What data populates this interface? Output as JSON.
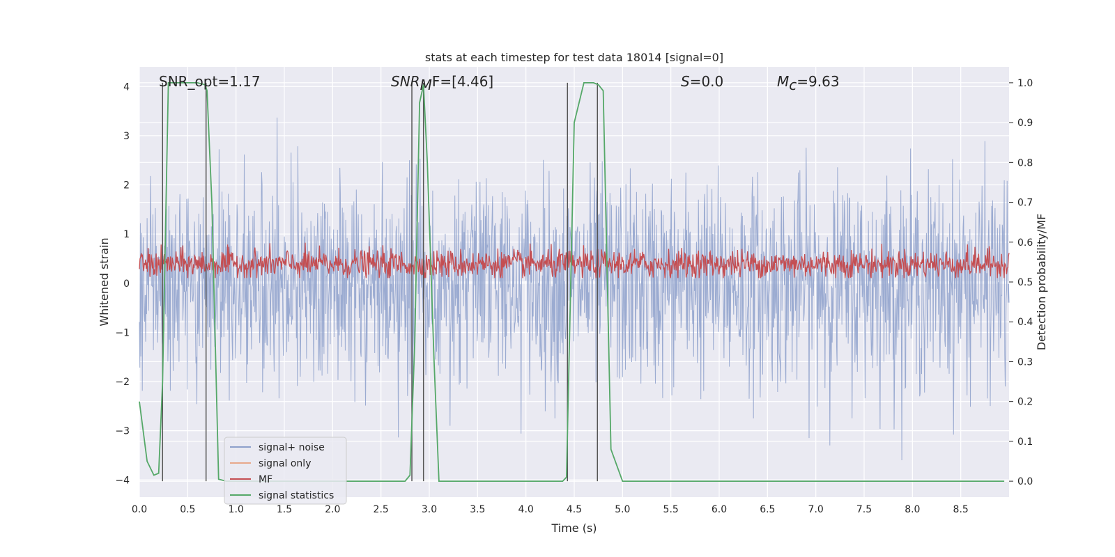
{
  "chart_data": {
    "type": "line",
    "title": "stats at each timestep for test data 18014 [signal=0]",
    "xlabel": "Time (s)",
    "ylabel_left": "Whitened strain",
    "ylabel_right": "Detection probability/MF",
    "xlim": [
      0,
      9.0
    ],
    "ylim_left": [
      -4.35,
      4.4
    ],
    "ylim_right": [
      -0.04,
      1.04
    ],
    "x_ticks": [
      "0.0",
      "0.5",
      "1.0",
      "1.5",
      "2.0",
      "2.5",
      "3.0",
      "3.5",
      "4.0",
      "4.5",
      "5.0",
      "5.5",
      "6.0",
      "6.5",
      "7.0",
      "7.5",
      "8.0",
      "8.5"
    ],
    "x_tick_values": [
      0,
      0.5,
      1,
      1.5,
      2,
      2.5,
      3,
      3.5,
      4,
      4.5,
      5,
      5.5,
      6,
      6.5,
      7,
      7.5,
      8,
      8.5
    ],
    "y_ticks_left": [
      "−4",
      "−3",
      "−2",
      "−1",
      "0",
      "1",
      "2",
      "3",
      "4"
    ],
    "y_tick_values_left": [
      -4,
      -3,
      -2,
      -1,
      0,
      1,
      2,
      3,
      4
    ],
    "y_ticks_right": [
      "0.0",
      "0.1",
      "0.2",
      "0.3",
      "0.4",
      "0.5",
      "0.6",
      "0.7",
      "0.8",
      "0.9",
      "1.0"
    ],
    "y_tick_values_right": [
      0,
      0.1,
      0.2,
      0.3,
      0.4,
      0.5,
      0.6,
      0.7,
      0.8,
      0.9,
      1.0
    ],
    "annotations": {
      "snr_opt": "SNR_opt=1.17",
      "snr_mf_base": "SNR",
      "snr_mf_sub": "M",
      "snr_mf_rest": "F=[4.46]",
      "s_var": "S",
      "s_rest": "=0.0",
      "mc_base": "M",
      "mc_sub": "c",
      "mc_rest": "=9.63"
    },
    "series": [
      {
        "name": "signal+ noise",
        "color": "#8da0cb",
        "description": "dense whitened strain noise, amplitude envelope approx ±2 with spikes to ±3.6",
        "envelope_upper": 2.0,
        "envelope_lower": -2.0,
        "spike_max": 3.6,
        "spike_min": -3.6
      },
      {
        "name": "signal only",
        "color": "#e8a88a",
        "values": []
      },
      {
        "name": "MF",
        "color": "#c44e52",
        "description": "matched filter output on right axis, around 0.55 with range 0.51–0.61"
      },
      {
        "name": "signal statistics",
        "color": "#55a868",
        "x": [
          0.0,
          0.08,
          0.15,
          0.2,
          0.24,
          0.3,
          0.35,
          0.5,
          0.6,
          0.68,
          0.7,
          0.75,
          0.82,
          0.9,
          1.5,
          2.0,
          2.5,
          2.75,
          2.8,
          2.85,
          2.9,
          2.94,
          2.98,
          3.05,
          3.1,
          3.5,
          4.0,
          4.38,
          4.42,
          4.5,
          4.6,
          4.7,
          4.75,
          4.8,
          4.88,
          5.0,
          6.0,
          7.0,
          8.0,
          8.95
        ],
        "values": [
          0.2,
          0.05,
          0.015,
          0.02,
          0.25,
          1.0,
          1.0,
          1.0,
          1.0,
          0.995,
          0.98,
          0.7,
          0.005,
          0.0,
          0.0,
          0.0,
          0.0,
          0.0,
          0.015,
          0.35,
          0.95,
          0.995,
          0.8,
          0.3,
          0.0,
          0.0,
          0.0,
          0.0,
          0.01,
          0.9,
          1.0,
          1.0,
          0.995,
          0.98,
          0.08,
          0.0,
          0.0,
          0.0,
          0.0,
          0.0
        ]
      }
    ],
    "vlines": [
      0.24,
      0.69,
      2.82,
      2.94,
      4.43,
      4.74
    ],
    "legend": {
      "position": "lower-left",
      "entries": [
        "signal+ noise",
        "signal only",
        "MF",
        "signal statistics"
      ]
    }
  }
}
